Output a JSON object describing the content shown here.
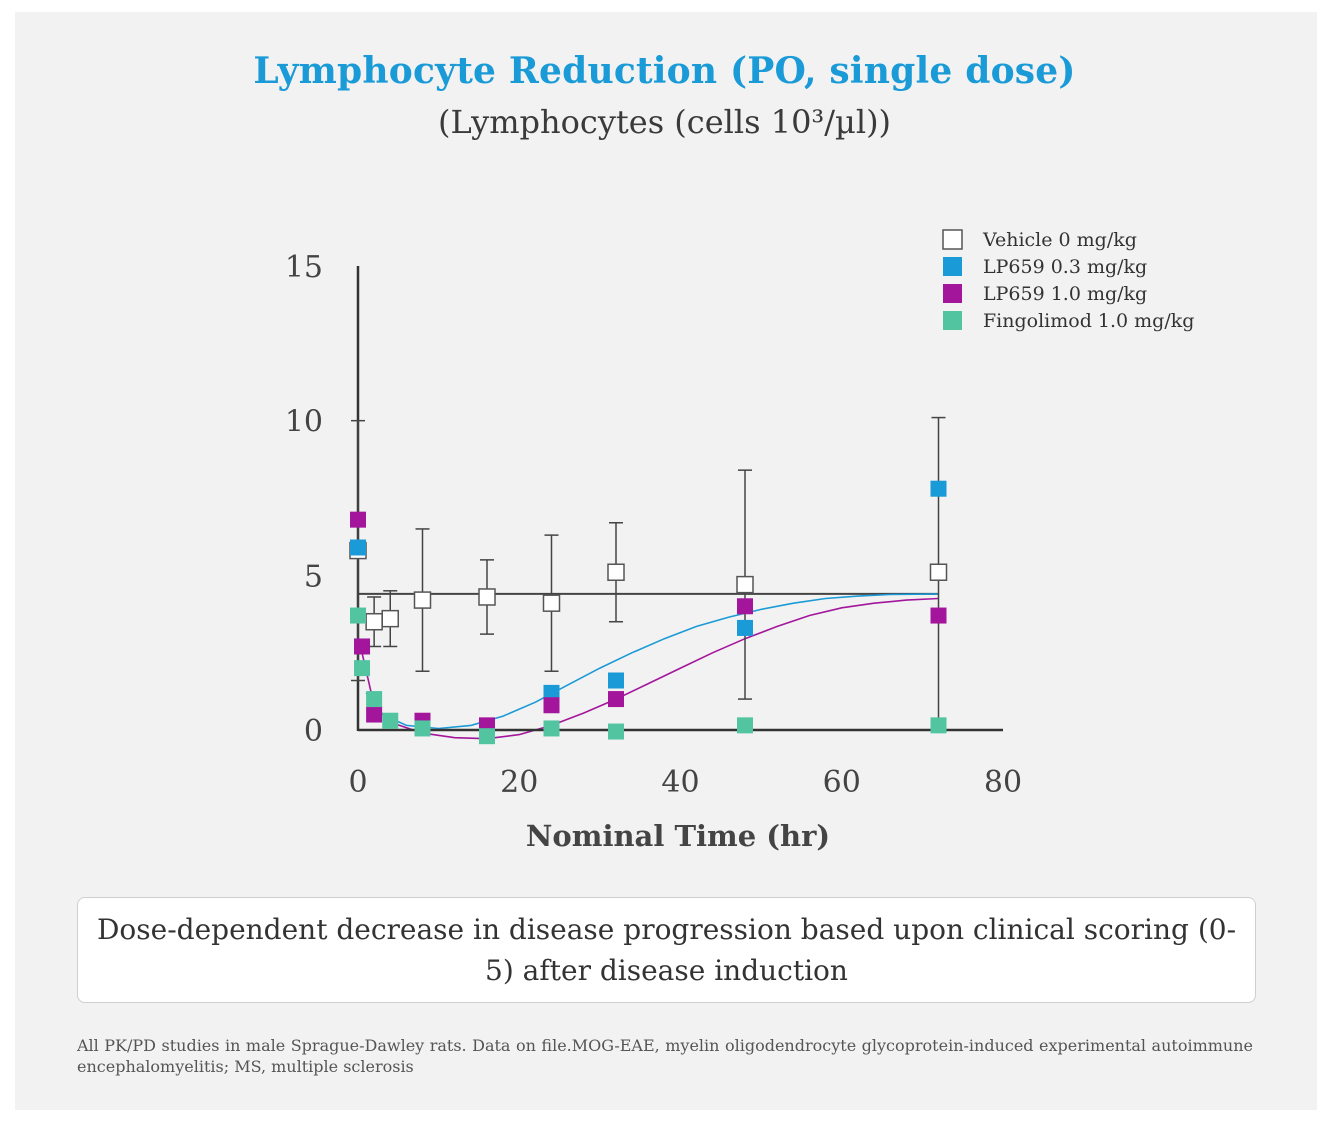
{
  "header": {
    "title": "Lymphocyte Reduction (PO, single dose)",
    "subtitle": "(Lymphocytes (cells 10³/µl))"
  },
  "chart_data": {
    "type": "scatter",
    "title": "Lymphocyte Reduction (PO, single dose)",
    "ylabel": "Lymphocytes (cells 10³/µl)",
    "xlabel": "Nominal Time (hr)",
    "xlim": [
      0,
      80
    ],
    "ylim": [
      0,
      15
    ],
    "xticks": [
      "0",
      "20",
      "40",
      "60",
      "80"
    ],
    "yticks": [
      "0",
      "5",
      "10",
      "15"
    ],
    "legend_position": "top-right",
    "series": [
      {
        "name": "Vehicle 0 mg/kg",
        "color": "#ffffff",
        "stroke": "#555555",
        "points": [
          {
            "x": 0,
            "y": 5.8,
            "err": 4.2
          },
          {
            "x": 2,
            "y": 3.5,
            "err": 0.8
          },
          {
            "x": 4,
            "y": 3.6,
            "err": 0.9
          },
          {
            "x": 8,
            "y": 4.2,
            "err": 2.3
          },
          {
            "x": 16,
            "y": 4.3,
            "err": 1.2
          },
          {
            "x": 24,
            "y": 4.1,
            "err": 2.2
          },
          {
            "x": 32,
            "y": 5.1,
            "err": 1.6
          },
          {
            "x": 48,
            "y": 4.7,
            "err": 3.7
          },
          {
            "x": 72,
            "y": 5.1,
            "err": 5.0
          }
        ],
        "fit": [
          [
            0,
            4.4
          ],
          [
            72,
            4.4
          ]
        ]
      },
      {
        "name": "LP659 0.3 mg/kg",
        "color": "#1a9ad6",
        "stroke": "#1a9ad6",
        "points": [
          {
            "x": 0,
            "y": 5.9
          },
          {
            "x": 0.5,
            "y": 2.7
          },
          {
            "x": 24,
            "y": 1.2
          },
          {
            "x": 32,
            "y": 1.6
          },
          {
            "x": 48,
            "y": 3.3
          },
          {
            "x": 72,
            "y": 7.8
          }
        ],
        "fit": [
          [
            1,
            1.2
          ],
          [
            3,
            0.5
          ],
          [
            6,
            0.15
          ],
          [
            10,
            0.05
          ],
          [
            14,
            0.15
          ],
          [
            18,
            0.45
          ],
          [
            22,
            0.9
          ],
          [
            26,
            1.45
          ],
          [
            30,
            2.0
          ],
          [
            34,
            2.5
          ],
          [
            38,
            2.95
          ],
          [
            42,
            3.35
          ],
          [
            46,
            3.65
          ],
          [
            50,
            3.9
          ],
          [
            54,
            4.1
          ],
          [
            58,
            4.25
          ],
          [
            62,
            4.33
          ],
          [
            66,
            4.38
          ],
          [
            72,
            4.4
          ]
        ]
      },
      {
        "name": "LP659 1.0 mg/kg",
        "color": "#a3169c",
        "stroke": "#a3169c",
        "points": [
          {
            "x": 0,
            "y": 6.8
          },
          {
            "x": 0.5,
            "y": 2.7
          },
          {
            "x": 2,
            "y": 0.5
          },
          {
            "x": 8,
            "y": 0.3
          },
          {
            "x": 16,
            "y": 0.15
          },
          {
            "x": 24,
            "y": 0.8
          },
          {
            "x": 32,
            "y": 1.0
          },
          {
            "x": 48,
            "y": 4.0
          },
          {
            "x": 72,
            "y": 3.7
          }
        ],
        "fit": [
          [
            0.5,
            2.5
          ],
          [
            2,
            0.8
          ],
          [
            4,
            0.25
          ],
          [
            8,
            -0.1
          ],
          [
            12,
            -0.25
          ],
          [
            16,
            -0.28
          ],
          [
            20,
            -0.15
          ],
          [
            24,
            0.15
          ],
          [
            28,
            0.55
          ],
          [
            32,
            1.0
          ],
          [
            36,
            1.5
          ],
          [
            40,
            2.0
          ],
          [
            44,
            2.5
          ],
          [
            48,
            2.95
          ],
          [
            52,
            3.35
          ],
          [
            56,
            3.7
          ],
          [
            60,
            3.95
          ],
          [
            64,
            4.1
          ],
          [
            68,
            4.2
          ],
          [
            72,
            4.25
          ]
        ]
      },
      {
        "name": "Fingolimod 1.0 mg/kg",
        "color": "#52c4a0",
        "stroke": "#52c4a0",
        "points": [
          {
            "x": 0,
            "y": 3.7
          },
          {
            "x": 0.5,
            "y": 2.0
          },
          {
            "x": 2,
            "y": 1.0
          },
          {
            "x": 4,
            "y": 0.3
          },
          {
            "x": 8,
            "y": 0.05
          },
          {
            "x": 16,
            "y": -0.2
          },
          {
            "x": 24,
            "y": 0.05
          },
          {
            "x": 32,
            "y": -0.05
          },
          {
            "x": 48,
            "y": 0.15
          },
          {
            "x": 72,
            "y": 0.15
          }
        ]
      }
    ]
  },
  "caption": "Dose-dependent decrease in disease progression based upon clinical scoring (0-5) after disease induction",
  "footnote": "All PK/PD studies in male Sprague-Dawley rats. Data on file.MOG-EAE, myelin oligodendrocyte glycoprotein-induced experimental autoimmune encephalomyelitis; MS, multiple sclerosis"
}
